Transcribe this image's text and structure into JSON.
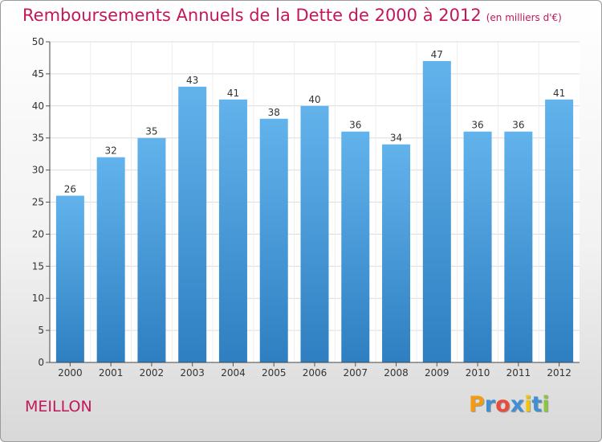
{
  "title": "Remboursements Annuels de la Dette de 2000 à 2012",
  "subtitle": "(en milliers d'€)",
  "commune": "MEILLON",
  "logo": {
    "letters": [
      "P",
      "r",
      "o",
      "x",
      "i",
      "t",
      "i"
    ],
    "colors": [
      "#f39c12",
      "#3f8fd2",
      "#e74c3c",
      "#3f8fd2",
      "#f1c40f",
      "#3f8fd2",
      "#8cc63f"
    ]
  },
  "colors": {
    "bar_top": "#62b3ec",
    "bar_bottom": "#2e7fc1",
    "title": "#c2185b"
  },
  "chart_data": {
    "type": "bar",
    "categories": [
      "2000",
      "2001",
      "2002",
      "2003",
      "2004",
      "2005",
      "2006",
      "2007",
      "2008",
      "2009",
      "2010",
      "2011",
      "2012"
    ],
    "values": [
      26,
      32,
      35,
      43,
      41,
      38,
      40,
      36,
      34,
      47,
      36,
      36,
      41
    ],
    "title": "Remboursements Annuels de la Dette de 2000 à 2012",
    "ylim": [
      0,
      50
    ],
    "yticks": [
      0,
      5,
      10,
      15,
      20,
      25,
      30,
      35,
      40,
      45,
      50
    ],
    "grid": true,
    "data_labels": true
  }
}
